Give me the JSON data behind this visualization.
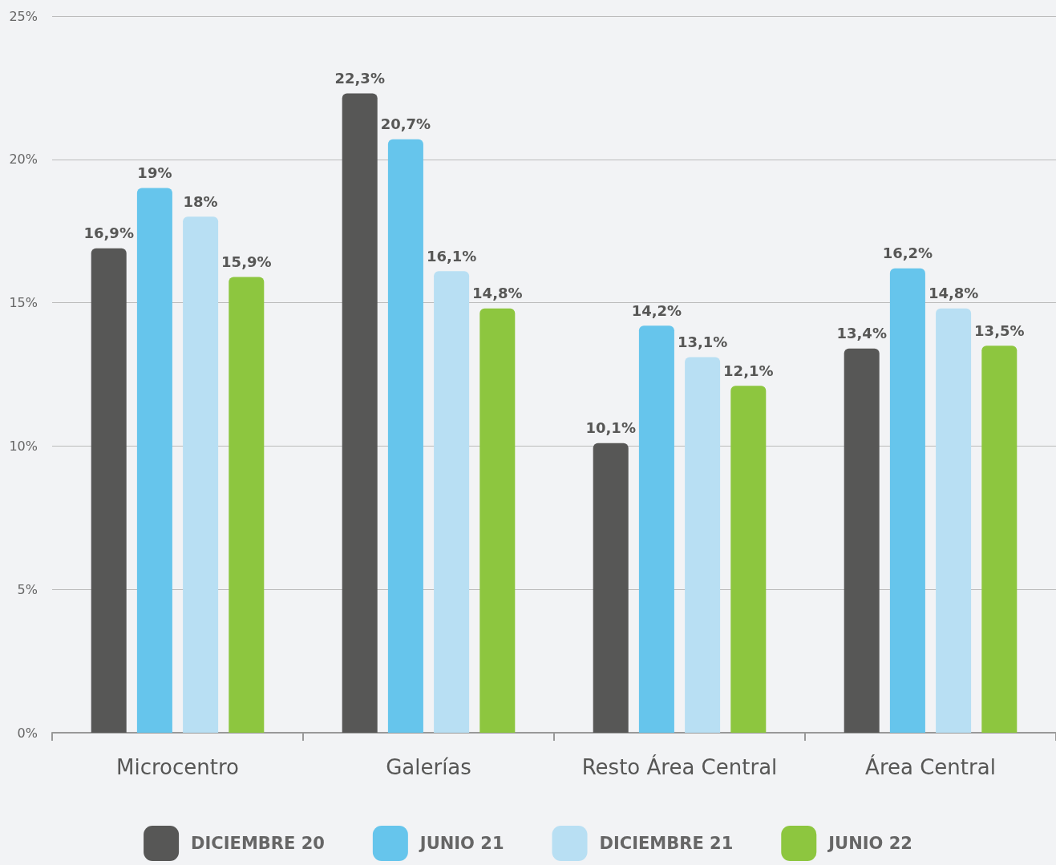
{
  "chart_data": {
    "type": "bar",
    "categories": [
      "Microcentro",
      "Galerías",
      "Resto Área Central",
      "Área Central"
    ],
    "series": [
      {
        "name": "DICIEMBRE 20",
        "color": "#575756",
        "values": [
          16.9,
          22.3,
          10.1,
          13.4
        ],
        "value_labels": [
          "16,9%",
          "22,3%",
          "10,1%",
          "13,4%"
        ]
      },
      {
        "name": "JUNIO 21",
        "color": "#66c5ec",
        "values": [
          19,
          20.7,
          14.2,
          16.2
        ],
        "value_labels": [
          "19%",
          "20,7%",
          "14,2%",
          "16,2%"
        ]
      },
      {
        "name": "DICIEMBRE 21",
        "color": "#b8dff3",
        "values": [
          18,
          16.1,
          13.1,
          14.8
        ],
        "value_labels": [
          "18%",
          "16,1%",
          "13,1%",
          "14,8%"
        ]
      },
      {
        "name": "JUNIO 22",
        "color": "#8dc63f",
        "values": [
          15.9,
          14.8,
          12.1,
          13.5
        ],
        "value_labels": [
          "15,9%",
          "14,8%",
          "12,1%",
          "13,5%"
        ]
      }
    ],
    "ylim": [
      0,
      25
    ],
    "yticks": [
      {
        "value": 0,
        "label": "0%"
      },
      {
        "value": 5,
        "label": "5%"
      },
      {
        "value": 10,
        "label": "10%"
      },
      {
        "value": 15,
        "label": "15%"
      },
      {
        "value": 20,
        "label": "20%"
      },
      {
        "value": 25,
        "label": "25%"
      }
    ],
    "grid": "y",
    "legend": "bottom"
  }
}
